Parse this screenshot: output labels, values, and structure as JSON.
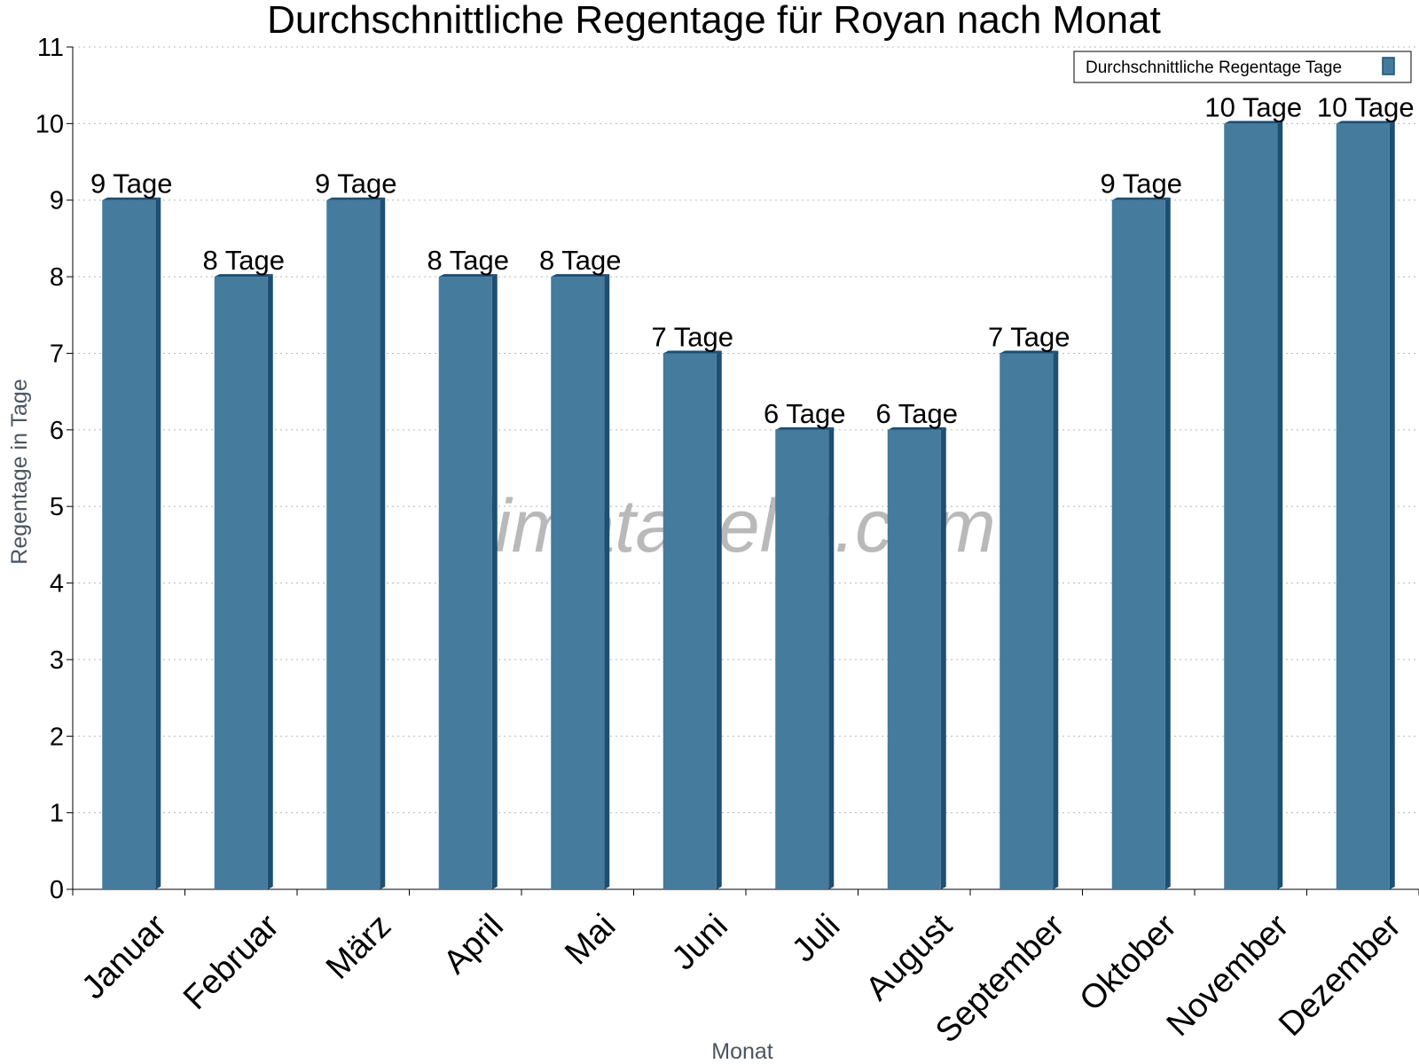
{
  "chart_data": {
    "type": "bar",
    "title": "Durchschnittliche Regentage für Royan nach Monat",
    "xlabel": "Monat",
    "ylabel": "Regentage in Tage",
    "ylim": [
      0,
      11
    ],
    "yticks": [
      0,
      1,
      2,
      3,
      4,
      5,
      6,
      7,
      8,
      9,
      10,
      11
    ],
    "grid": true,
    "legend_position": "top-right",
    "categories": [
      "Januar",
      "Februar",
      "März",
      "April",
      "Mai",
      "Juni",
      "Juli",
      "August",
      "September",
      "Oktober",
      "November",
      "Dezember"
    ],
    "series": [
      {
        "name": "Durchschnittliche Regentage Tage",
        "values": [
          9,
          8,
          9,
          8,
          8,
          7,
          6,
          6,
          7,
          9,
          10,
          10
        ],
        "labels": [
          "9 Tage",
          "8 Tage",
          "9 Tage",
          "8 Tage",
          "8 Tage",
          "7 Tage",
          "6 Tage",
          "6 Tage",
          "7 Tage",
          "9 Tage",
          "10 Tage",
          "10 Tage"
        ],
        "color": "#457b9d",
        "side_color": "#1d4e73"
      }
    ],
    "watermark": "klimatabelle.com"
  }
}
